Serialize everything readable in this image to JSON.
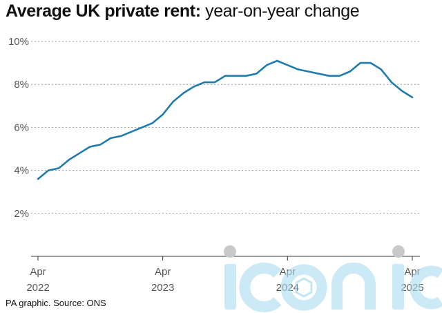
{
  "title_bold": "Average UK private rent:",
  "title_rest": " year-on-year change",
  "source": "PA graphic. Source: ONS",
  "watermark": "iconic",
  "colors": {
    "line": "#1f7bab",
    "grid": "#999999",
    "watermark": "#a8dcef"
  },
  "chart_data": {
    "type": "line",
    "title": "Average UK private rent: year-on-year change",
    "xlabel": "",
    "ylabel": "",
    "ylim": [
      0,
      10
    ],
    "grid": true,
    "y_ticks": [
      "2%",
      "4%",
      "6%",
      "8%",
      "10%"
    ],
    "y_tick_values": [
      2,
      4,
      6,
      8,
      10
    ],
    "x_ticks": [
      {
        "line1": "Apr",
        "line2": "2022",
        "month": 0
      },
      {
        "line1": "Apr",
        "line2": "2023",
        "month": 12
      },
      {
        "line1": "Apr",
        "line2": "2024",
        "month": 24
      },
      {
        "line1": "Apr",
        "line2": "2025",
        "month": 36
      }
    ],
    "series": [
      {
        "x": [
          "Apr 2022",
          "May 2022",
          "Jun 2022",
          "Jul 2022",
          "Aug 2022",
          "Sep 2022",
          "Oct 2022",
          "Nov 2022",
          "Dec 2022",
          "Jan 2023",
          "Feb 2023",
          "Mar 2023",
          "Apr 2023",
          "May 2023",
          "Jun 2023",
          "Jul 2023",
          "Aug 2023",
          "Sep 2023",
          "Oct 2023",
          "Nov 2023",
          "Dec 2023",
          "Jan 2024",
          "Feb 2024",
          "Mar 2024",
          "Apr 2024",
          "May 2024",
          "Jun 2024",
          "Jul 2024",
          "Aug 2024",
          "Sep 2024",
          "Oct 2024",
          "Nov 2024",
          "Dec 2024",
          "Jan 2025",
          "Feb 2025",
          "Mar 2025",
          "Apr 2025"
        ],
        "values": [
          3.6,
          4.0,
          4.1,
          4.5,
          4.8,
          5.1,
          5.2,
          5.5,
          5.6,
          5.8,
          6.0,
          6.2,
          6.6,
          7.2,
          7.6,
          7.9,
          8.1,
          8.1,
          8.4,
          8.4,
          8.4,
          8.5,
          8.9,
          9.1,
          8.9,
          8.7,
          8.6,
          8.5,
          8.4,
          8.4,
          8.6,
          9.0,
          9.0,
          8.7,
          8.1,
          7.7,
          7.4
        ]
      }
    ]
  }
}
